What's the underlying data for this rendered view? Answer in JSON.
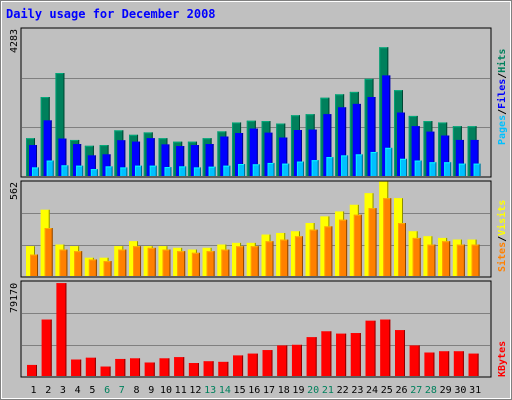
{
  "colors": {
    "background": "#C0C0C0",
    "title": "#0000FF",
    "grid": "#808080",
    "hits": "#00805C",
    "files": "#0000FF",
    "pages": "#00C0FF",
    "visits": "#FFFF00",
    "sites": "#FF8000",
    "kbytes": "#FF0000",
    "weekday": "#000000",
    "weekend": "#00805C"
  },
  "chart_data": [
    {
      "type": "bar",
      "title": "Daily usage for December 2008",
      "categories": [
        "1",
        "2",
        "3",
        "4",
        "5",
        "6",
        "7",
        "8",
        "9",
        "10",
        "11",
        "12",
        "13",
        "14",
        "15",
        "16",
        "17",
        "18",
        "19",
        "20",
        "21",
        "22",
        "23",
        "24",
        "25",
        "26",
        "27",
        "28",
        "29",
        "30",
        "31"
      ],
      "weekend_days": [
        "6",
        "7",
        "13",
        "14",
        "20",
        "21",
        "27",
        "28"
      ],
      "ymax_label": "4283",
      "ylim": [
        0,
        4283
      ],
      "legend": [
        "Pages",
        "Files",
        "Hits"
      ],
      "series": [
        {
          "name": "Hits",
          "values": [
            1100,
            2300,
            3000,
            1050,
            880,
            900,
            1330,
            1200,
            1270,
            1100,
            1000,
            1000,
            1100,
            1300,
            1560,
            1610,
            1600,
            1530,
            1770,
            1800,
            2280,
            2380,
            2450,
            2830,
            3750,
            2500,
            1750,
            1600,
            1560,
            1450,
            1450
          ]
        },
        {
          "name": "Files",
          "values": [
            900,
            1620,
            1090,
            930,
            600,
            630,
            1040,
            1000,
            1100,
            920,
            870,
            900,
            930,
            1150,
            1250,
            1380,
            1260,
            1120,
            1340,
            1350,
            1800,
            2000,
            2100,
            2300,
            2930,
            1850,
            1450,
            1290,
            1180,
            1050,
            1050
          ]
        },
        {
          "name": "Pages",
          "values": [
            250,
            450,
            310,
            300,
            200,
            280,
            250,
            300,
            300,
            260,
            280,
            250,
            270,
            300,
            350,
            340,
            380,
            360,
            420,
            460,
            550,
            600,
            630,
            700,
            820,
            500,
            450,
            400,
            400,
            360,
            360
          ]
        }
      ]
    },
    {
      "type": "bar",
      "categories": [
        "1",
        "2",
        "3",
        "4",
        "5",
        "6",
        "7",
        "8",
        "9",
        "10",
        "11",
        "12",
        "13",
        "14",
        "15",
        "16",
        "17",
        "18",
        "19",
        "20",
        "21",
        "22",
        "23",
        "24",
        "25",
        "26",
        "27",
        "28",
        "29",
        "30",
        "31"
      ],
      "ymax_label": "562",
      "ylim": [
        0,
        562
      ],
      "legend": [
        "Sites",
        "Visits"
      ],
      "series": [
        {
          "name": "Visits",
          "values": [
            180,
            400,
            190,
            180,
            110,
            110,
            180,
            210,
            180,
            180,
            170,
            160,
            170,
            190,
            200,
            200,
            250,
            260,
            270,
            320,
            360,
            390,
            430,
            500,
            570,
            470,
            270,
            240,
            230,
            220,
            220
          ]
        },
        {
          "name": "Sites",
          "values": [
            130,
            290,
            160,
            150,
            100,
            90,
            160,
            180,
            170,
            160,
            150,
            140,
            150,
            160,
            180,
            180,
            210,
            220,
            240,
            280,
            300,
            340,
            370,
            410,
            470,
            320,
            230,
            190,
            210,
            190,
            190
          ]
        }
      ]
    },
    {
      "type": "bar",
      "categories": [
        "1",
        "2",
        "3",
        "4",
        "5",
        "6",
        "7",
        "8",
        "9",
        "10",
        "11",
        "12",
        "13",
        "14",
        "15",
        "16",
        "17",
        "18",
        "19",
        "20",
        "21",
        "22",
        "23",
        "24",
        "25",
        "26",
        "27",
        "28",
        "29",
        "30",
        "31"
      ],
      "ymax_label": "79170",
      "ylim": [
        0,
        79170
      ],
      "legend": [
        "KBytes"
      ],
      "series": [
        {
          "name": "KBytes",
          "values": [
            9400,
            48000,
            79000,
            14000,
            15500,
            8000,
            14500,
            15000,
            11500,
            15000,
            16000,
            11000,
            12500,
            12000,
            17500,
            19000,
            22000,
            26000,
            26500,
            33000,
            38000,
            36000,
            36500,
            47000,
            48000,
            39000,
            26000,
            20000,
            21000,
            21000,
            19000
          ]
        }
      ]
    }
  ]
}
